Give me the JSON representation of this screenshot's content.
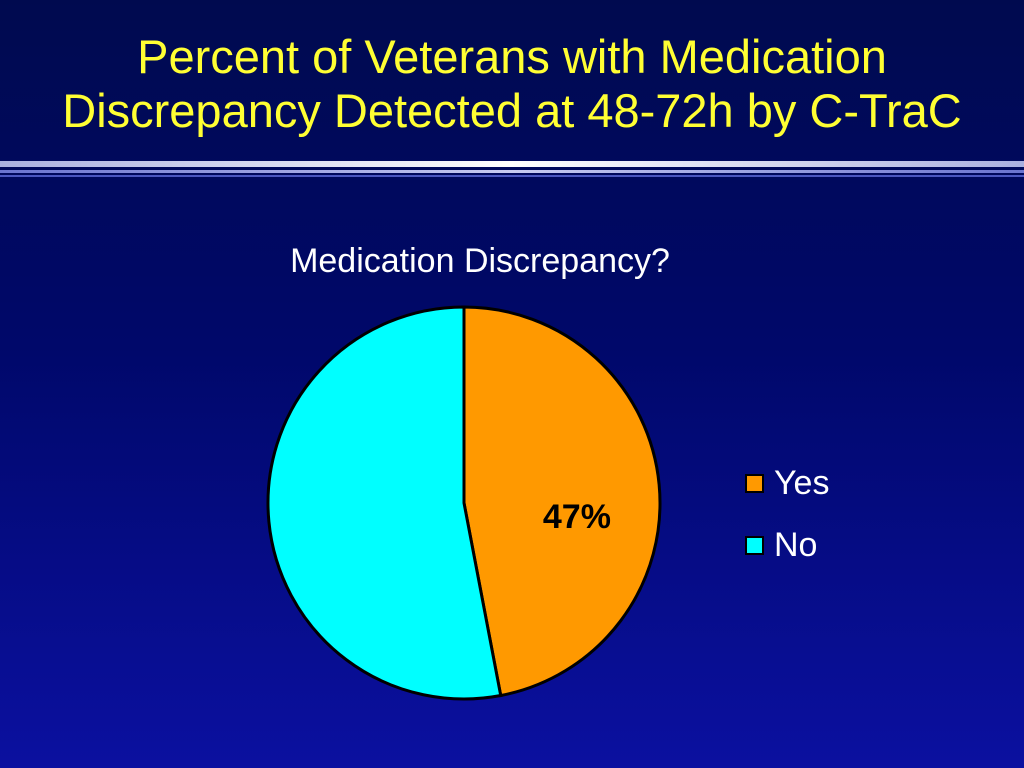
{
  "slide": {
    "title_line1": "Percent of Veterans with Medication",
    "title_line2": "Discrepancy Detected at 48-72h by C-TraC"
  },
  "chart_data": {
    "type": "pie",
    "title": "Medication Discrepancy?",
    "slices": [
      {
        "label": "Yes",
        "value": 47,
        "color": "#ff9900",
        "data_label": "47%"
      },
      {
        "label": "No",
        "value": 53,
        "color": "#00ffff",
        "data_label": ""
      }
    ],
    "legend_position": "right"
  }
}
